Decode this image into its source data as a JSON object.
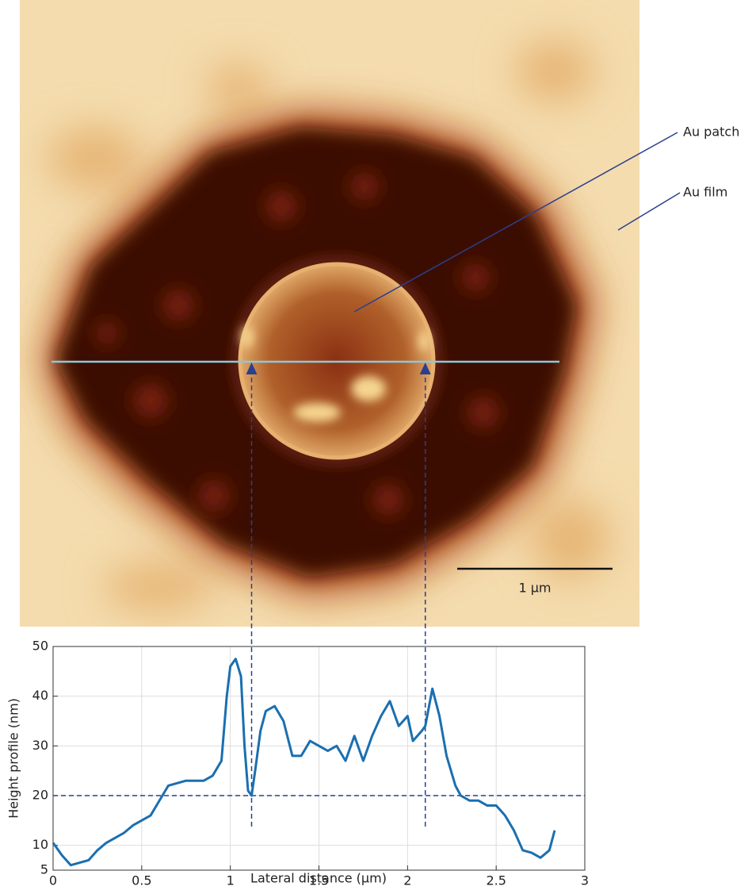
{
  "image_labels": {
    "patch": "Au patch",
    "film": "Au film",
    "scale_bar": "1 μm"
  },
  "chart_data": {
    "type": "line",
    "xlabel": "Lateral distance (μm)",
    "ylabel": "Height profile (nm)",
    "x": [
      0,
      0.05,
      0.1,
      0.15,
      0.2,
      0.25,
      0.3,
      0.35,
      0.4,
      0.45,
      0.5,
      0.55,
      0.6,
      0.65,
      0.7,
      0.75,
      0.8,
      0.85,
      0.9,
      0.95,
      0.98,
      1.0,
      1.03,
      1.06,
      1.08,
      1.1,
      1.12,
      1.14,
      1.17,
      1.2,
      1.25,
      1.3,
      1.35,
      1.4,
      1.45,
      1.5,
      1.55,
      1.6,
      1.65,
      1.7,
      1.75,
      1.8,
      1.85,
      1.9,
      1.95,
      2.0,
      2.03,
      2.08,
      2.1,
      2.14,
      2.18,
      2.22,
      2.27,
      2.3,
      2.35,
      2.4,
      2.45,
      2.5,
      2.55,
      2.6,
      2.65,
      2.7,
      2.75,
      2.8,
      2.83
    ],
    "series": [
      {
        "color": "#1a6fb0",
        "values": [
          10.5,
          8,
          6,
          6.5,
          7,
          9,
          10.5,
          11.5,
          12.5,
          14,
          15,
          16,
          19,
          22,
          22.5,
          23,
          23,
          23,
          24,
          27,
          40,
          46,
          47.5,
          44,
          30,
          21,
          20,
          25,
          33,
          37,
          38,
          35,
          28,
          28,
          31,
          30,
          29,
          30,
          27,
          32,
          27,
          32,
          36,
          39,
          34,
          36,
          31,
          33,
          34,
          41.5,
          36,
          28,
          22,
          20,
          19,
          19,
          18,
          18,
          16,
          13,
          9,
          8.5,
          7.5,
          9,
          13
        ]
      }
    ],
    "hline": 20,
    "vlines": [
      1.12,
      2.1
    ],
    "xlim": [
      0,
      3
    ],
    "xticks": [
      0,
      0.5,
      1,
      1.5,
      2,
      2.5,
      3
    ],
    "ylim": [
      5,
      50
    ],
    "yticks": [
      5,
      10,
      20,
      30,
      40,
      50
    ],
    "grid": true
  }
}
